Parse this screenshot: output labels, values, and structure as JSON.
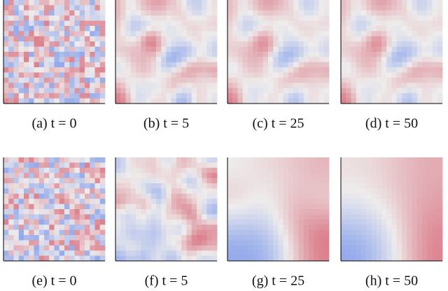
{
  "figure": {
    "panels": [
      {
        "caption": "(a) t = 0"
      },
      {
        "caption": "(b) t = 5"
      },
      {
        "caption": "(c) t = 25"
      },
      {
        "caption": "(d) t = 50"
      },
      {
        "caption": "(e) t = 0"
      },
      {
        "caption": "(f) t = 5"
      },
      {
        "caption": "(g) t = 25"
      },
      {
        "caption": "(h) t = 50"
      }
    ]
  }
}
